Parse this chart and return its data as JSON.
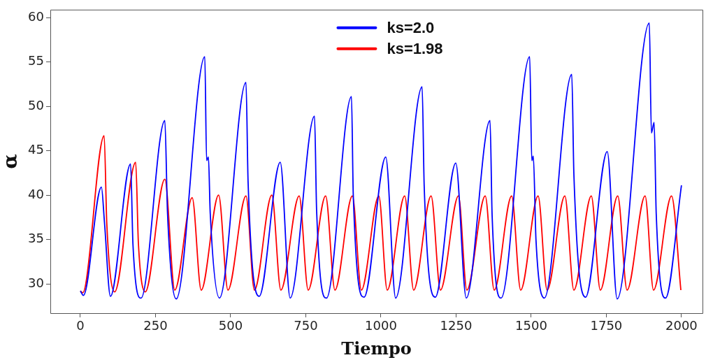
{
  "chart_data": {
    "type": "line",
    "xlabel": "Tiempo",
    "ylabel": "α",
    "xlim": [
      -100,
      2070
    ],
    "xticks": [
      0,
      250,
      500,
      750,
      1000,
      1250,
      1500,
      1750,
      2000
    ],
    "ylim": [
      26.7,
      60.9
    ],
    "yticks": [
      30,
      35,
      40,
      45,
      50,
      55,
      60
    ],
    "grid": false,
    "legend": "top",
    "marker": "none",
    "line_style": "solid",
    "series": [
      {
        "name": "ks=2.0",
        "color": "#0000ff",
        "x": [
          0,
          10,
          70,
          80,
          100,
          167,
          175,
          202,
          281,
          290,
          319,
          414,
          420,
          426,
          432,
          463,
          551,
          558,
          595,
          665,
          698,
          779,
          786,
          819,
          902,
          908,
          944,
          1016,
          1049,
          1137,
          1144,
          1181,
          1249,
          1284,
          1363,
          1370,
          1400,
          1495,
          1502,
          1507,
          1516,
          1544,
          1635,
          1642,
          1681,
          1753,
          1786,
          1893,
          1900,
          1909,
          1916,
          1947,
          2000
        ],
        "values": [
          29.2,
          28.7,
          40.9,
          37,
          28.6,
          43.5,
          34.4,
          28.4,
          48.4,
          37.9,
          28.3,
          55.6,
          43.9,
          44.3,
          38,
          28.4,
          52.7,
          41.5,
          28.6,
          43.7,
          28.4,
          48.9,
          38.3,
          28.4,
          51.1,
          40.0,
          28.5,
          44.3,
          28.4,
          52.2,
          41.0,
          28.5,
          43.6,
          28.4,
          48.4,
          37.7,
          28.4,
          55.6,
          43.9,
          44.4,
          34.9,
          28.4,
          53.6,
          42.4,
          28.5,
          44.9,
          28.3,
          59.4,
          47.0,
          48.2,
          37.9,
          28.4,
          41.1
        ]
      },
      {
        "name": "ks=1.98",
        "color": "#ff0000",
        "x": [
          0,
          8,
          79,
          88,
          114,
          184,
          193,
          216,
          281,
          314,
          372,
          402,
          460,
          491,
          551,
          579,
          637,
          667,
          728,
          758,
          816,
          847,
          905,
          935,
          993,
          1021,
          1079,
          1109,
          1167,
          1198,
          1258,
          1286,
          1347,
          1377,
          1435,
          1465,
          1523,
          1553,
          1612,
          1642,
          1700,
          1730,
          1788,
          1819,
          1879,
          1907,
          1967,
          1998
        ],
        "values": [
          29.2,
          29.0,
          46.7,
          36.7,
          29.1,
          43.7,
          34.6,
          29.1,
          41.8,
          29.3,
          39.7,
          29.3,
          40.0,
          29.3,
          39.9,
          29.3,
          40.0,
          29.3,
          39.9,
          29.3,
          39.9,
          29.3,
          39.9,
          29.3,
          39.9,
          29.3,
          39.9,
          29.3,
          39.9,
          29.3,
          39.9,
          29.3,
          39.9,
          29.3,
          39.9,
          29.3,
          39.9,
          29.3,
          39.9,
          29.3,
          39.9,
          29.3,
          39.9,
          29.3,
          39.9,
          29.3,
          39.9,
          29.3
        ]
      }
    ]
  }
}
